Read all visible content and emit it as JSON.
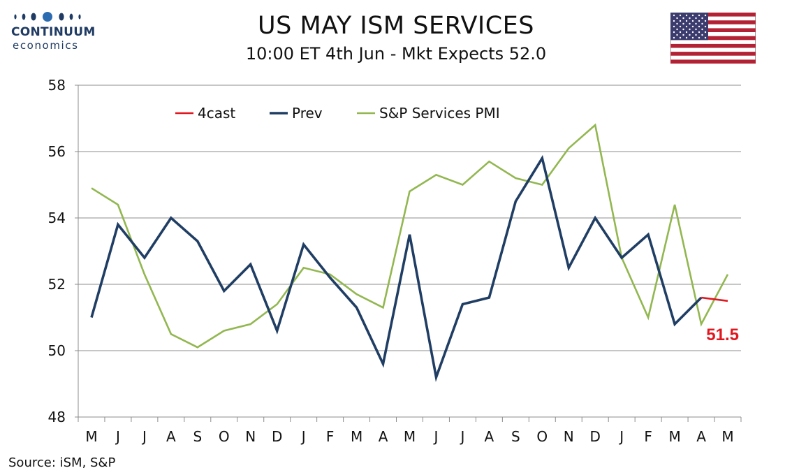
{
  "logo": {
    "name": "CONTINUUM",
    "sub": "economics"
  },
  "title": "US MAY ISM SERVICES",
  "subtitle": "10:00 ET 4th Jun - Mkt Expects 52.0",
  "source": "Source: iSM, S&P",
  "colors": {
    "forecast": "#e0171f",
    "prev": "#203e64",
    "sp": "#92b750",
    "grid": "#8c8c8c",
    "brand": "#1f3b63"
  },
  "chart_data": {
    "type": "line",
    "categories": [
      "M",
      "J",
      "J",
      "A",
      "S",
      "O",
      "N",
      "D",
      "J",
      "F",
      "M",
      "A",
      "M",
      "J",
      "J",
      "A",
      "S",
      "O",
      "N",
      "D",
      "J",
      "F",
      "M",
      "A",
      "M"
    ],
    "ylim": [
      48,
      58
    ],
    "yticks": [
      48,
      50,
      52,
      54,
      56,
      58
    ],
    "grid": true,
    "legend_position": "top-left",
    "series": [
      {
        "name": "4cast",
        "color": "#e0171f",
        "values": [
          null,
          null,
          null,
          null,
          null,
          null,
          null,
          null,
          null,
          null,
          null,
          null,
          null,
          null,
          null,
          null,
          null,
          null,
          null,
          null,
          null,
          null,
          null,
          51.6,
          51.5
        ]
      },
      {
        "name": "Prev",
        "color": "#203e64",
        "values": [
          51.0,
          53.8,
          52.8,
          54.0,
          53.3,
          51.8,
          52.6,
          50.6,
          53.2,
          52.2,
          51.3,
          49.6,
          53.5,
          49.2,
          51.4,
          51.6,
          54.5,
          55.8,
          52.5,
          54.0,
          52.8,
          53.5,
          50.8,
          51.6,
          null
        ]
      },
      {
        "name": "S&P Services PMI",
        "color": "#92b750",
        "values": [
          54.9,
          54.4,
          52.3,
          50.5,
          50.1,
          50.6,
          50.8,
          51.4,
          52.5,
          52.3,
          51.7,
          51.3,
          54.8,
          55.3,
          55.0,
          55.7,
          55.2,
          55.0,
          56.1,
          56.8,
          52.8,
          51.0,
          54.4,
          50.8,
          52.3
        ]
      }
    ],
    "annotation": {
      "text": "51.5",
      "category_index": 24,
      "value": 51.5
    }
  }
}
